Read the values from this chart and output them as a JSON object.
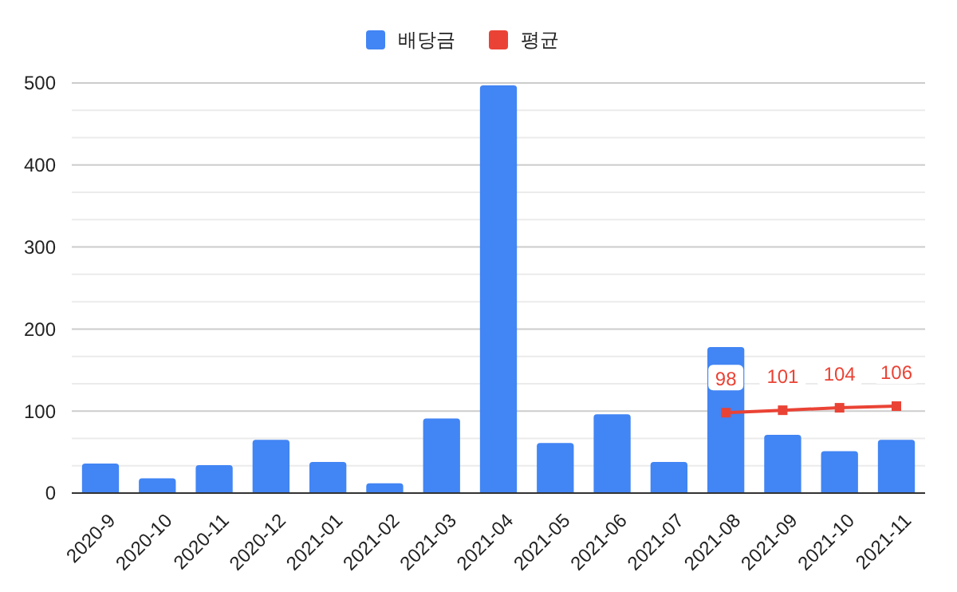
{
  "chart_data": {
    "type": "bar",
    "categories": [
      "2020-9",
      "2020-10",
      "2020-11",
      "2020-12",
      "2021-01",
      "2021-02",
      "2021-03",
      "2021-04",
      "2021-05",
      "2021-06",
      "2021-07",
      "2021-08",
      "2021-09",
      "2021-10",
      "2021-11"
    ],
    "series": [
      {
        "name": "배당금",
        "color": "#4285f4",
        "values": [
          36,
          18,
          34,
          65,
          38,
          12,
          91,
          497,
          61,
          96,
          38,
          178,
          71,
          51,
          65
        ]
      },
      {
        "name": "평균",
        "type": "line",
        "color": "#ea4335",
        "marker": "square",
        "values": [
          null,
          null,
          null,
          null,
          null,
          null,
          null,
          null,
          null,
          null,
          null,
          98,
          101,
          104,
          106
        ],
        "value_labels": [
          null,
          null,
          null,
          null,
          null,
          null,
          null,
          null,
          null,
          null,
          null,
          "98",
          "101",
          "104",
          "106"
        ]
      }
    ],
    "ylim": [
      0,
      500
    ],
    "yticks": [
      0,
      100,
      200,
      300,
      400,
      500
    ],
    "grid": "y",
    "legend": "top"
  }
}
